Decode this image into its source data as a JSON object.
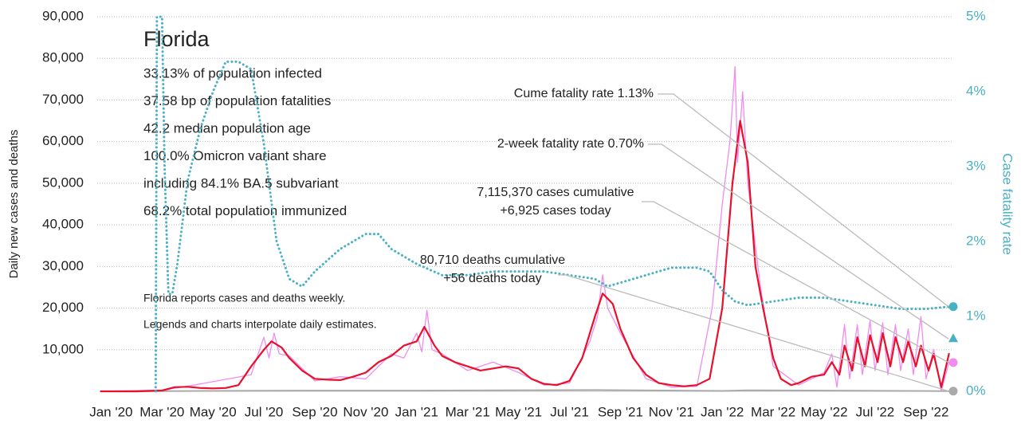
{
  "chart_data": {
    "type": "line",
    "title": "Florida",
    "stats": [
      "33.13% of population infected",
      "37.58 bp of population fatalities",
      "42.2 median population age",
      "100.0% Omicron variant share",
      "including 84.1% BA.5 subvariant",
      "68.2% total population immunized"
    ],
    "notes": [
      "Florida reports cases and deaths weekly.",
      "Legends and charts interpolate daily estimates."
    ],
    "ylabel": "Daily new cases and deaths",
    "y2label": "Case fatality rate",
    "xlim": [
      -0.45,
      33.1
    ],
    "xticks": [
      {
        "value": 0,
        "label": "Jan '20"
      },
      {
        "value": 2,
        "label": "Mar '20"
      },
      {
        "value": 4,
        "label": "May '20"
      },
      {
        "value": 6,
        "label": "Jul '20"
      },
      {
        "value": 8,
        "label": "Sep '20"
      },
      {
        "value": 10,
        "label": "Nov '20"
      },
      {
        "value": 12,
        "label": "Jan '21"
      },
      {
        "value": 14,
        "label": "Mar '21"
      },
      {
        "value": 16,
        "label": "May '21"
      },
      {
        "value": 18,
        "label": "Jul '21"
      },
      {
        "value": 20,
        "label": "Sep '21"
      },
      {
        "value": 22,
        "label": "Nov '21"
      },
      {
        "value": 24,
        "label": "Jan '22"
      },
      {
        "value": 26,
        "label": "Mar '22"
      },
      {
        "value": 28,
        "label": "May '22"
      },
      {
        "value": 30,
        "label": "Jul '22"
      },
      {
        "value": 32,
        "label": "Sep '22"
      }
    ],
    "ylim": [
      0,
      90000
    ],
    "yticks": [
      {
        "value": 10000,
        "label": "10,000"
      },
      {
        "value": 20000,
        "label": "20,000"
      },
      {
        "value": 30000,
        "label": "30,000"
      },
      {
        "value": 40000,
        "label": "40,000"
      },
      {
        "value": 50000,
        "label": "50,000"
      },
      {
        "value": 60000,
        "label": "60,000"
      },
      {
        "value": 70000,
        "label": "70,000"
      },
      {
        "value": 80000,
        "label": "80,000"
      },
      {
        "value": 90000,
        "label": "90,000"
      }
    ],
    "y2lim": [
      0,
      5
    ],
    "y2ticks": [
      {
        "value": 0,
        "label": "0%"
      },
      {
        "value": 1,
        "label": "1%"
      },
      {
        "value": 2,
        "label": "2%"
      },
      {
        "value": 3,
        "label": "3%"
      },
      {
        "value": 4,
        "label": "4%"
      },
      {
        "value": 5,
        "label": "5%"
      }
    ],
    "grid": true,
    "series": [
      {
        "color": "#f08cf0",
        "width": 1.3,
        "x": [
          -0.4,
          2,
          3,
          5.5,
          6,
          6.2,
          6.4,
          6.6,
          7,
          8,
          9,
          10,
          11,
          11.5,
          12,
          12.2,
          12.4,
          12.6,
          13,
          14,
          15,
          16,
          17,
          18,
          18.8,
          19.1,
          19.3,
          19.5,
          20,
          21,
          22,
          23,
          23.6,
          24,
          24.3,
          24.5,
          24.6,
          24.8,
          25,
          25.2,
          25.5,
          26,
          27,
          28,
          28.3,
          28.5,
          28.8,
          29.0,
          29.3,
          29.5,
          29.8,
          30.0,
          30.3,
          30.5,
          30.8,
          31.0,
          31.3,
          31.5,
          31.8,
          32.0,
          32.3,
          32.6,
          32.9
        ],
        "values": [
          0,
          300,
          1200,
          4000,
          13000,
          8000,
          14000,
          9000,
          8500,
          2500,
          3500,
          3000,
          9000,
          8000,
          14000,
          9500,
          19500,
          10000,
          9000,
          5000,
          7000,
          4500,
          1500,
          2000,
          12000,
          18000,
          28000,
          20000,
          14000,
          3000,
          1000,
          1200,
          20000,
          45000,
          60000,
          78000,
          55000,
          72000,
          50000,
          40000,
          25000,
          6000,
          1500,
          4500,
          9000,
          1000,
          16000,
          3000,
          16000,
          4000,
          17000,
          5000,
          16500,
          4000,
          16000,
          5000,
          15000,
          4000,
          18000,
          3000,
          10000,
          0,
          7000
        ]
      },
      {
        "color": "#aaaaaa",
        "width": 2,
        "x": [
          -0.4,
          2,
          6,
          12,
          19,
          24,
          25,
          32.9
        ],
        "values": [
          0,
          50,
          150,
          180,
          300,
          100,
          250,
          56
        ]
      },
      {
        "color": "#e8102a",
        "width": 2.2,
        "x": [
          -0.4,
          0,
          1,
          2,
          2.5,
          3,
          3.5,
          4,
          4.5,
          5,
          5.5,
          6,
          6.3,
          6.7,
          7,
          7.5,
          8,
          8.5,
          9,
          9.5,
          10,
          10.5,
          11,
          11.5,
          12,
          12.3,
          12.7,
          13,
          13.5,
          14,
          14.5,
          15,
          15.5,
          16,
          16.5,
          17,
          17.5,
          18,
          18.5,
          19,
          19.3,
          19.7,
          20,
          20.5,
          21,
          21.5,
          22,
          22.5,
          23,
          23.5,
          24,
          24.4,
          24.7,
          25,
          25.3,
          25.6,
          26,
          26.3,
          26.7,
          27,
          27.5,
          28,
          28.3,
          28.6,
          28.8,
          29.1,
          29.3,
          29.6,
          29.8,
          30.1,
          30.3,
          30.6,
          30.8,
          31.1,
          31.3,
          31.6,
          31.8,
          32.1,
          32.3,
          32.6,
          32.9
        ],
        "values": [
          0,
          0,
          0,
          200,
          1000,
          1100,
          800,
          700,
          800,
          1500,
          6000,
          10000,
          12000,
          10500,
          8000,
          5000,
          3000,
          2800,
          2700,
          3500,
          4500,
          7000,
          8500,
          11000,
          12000,
          15500,
          11000,
          8500,
          7000,
          6000,
          5000,
          5500,
          6000,
          5500,
          3000,
          1800,
          1500,
          2500,
          8000,
          18000,
          23500,
          21000,
          15000,
          8000,
          4000,
          2000,
          1500,
          1200,
          1500,
          3000,
          20000,
          50000,
          65000,
          55000,
          30000,
          20000,
          8000,
          3000,
          1500,
          2000,
          3500,
          4000,
          7000,
          4000,
          11000,
          5000,
          13000,
          6000,
          13500,
          7000,
          14000,
          6000,
          13000,
          7000,
          12000,
          6000,
          11000,
          5000,
          9000,
          1000,
          9000
        ]
      },
      {
        "color": "#4ab0c4",
        "width": 3,
        "dotted": true,
        "axis": "y2",
        "x": [
          1.75,
          1.8,
          2.0,
          2.1,
          2.25,
          2.4,
          2.6,
          3,
          3.5,
          4,
          4.5,
          5,
          5.5,
          6,
          6.5,
          7,
          7.5,
          8,
          9,
          10,
          10.5,
          11,
          12,
          13,
          14,
          15,
          16,
          17,
          18,
          19,
          19.5,
          20,
          21,
          22,
          23,
          23.5,
          24,
          24.5,
          25,
          26,
          27,
          28,
          29,
          30,
          31,
          32,
          32.9
        ],
        "values": [
          0,
          5,
          5,
          3.0,
          1.3,
          1.3,
          1.7,
          2.8,
          3.5,
          4.0,
          4.4,
          4.4,
          4.3,
          3.3,
          2.0,
          1.5,
          1.4,
          1.6,
          1.9,
          2.1,
          2.1,
          1.9,
          1.7,
          1.55,
          1.55,
          1.6,
          1.6,
          1.6,
          1.55,
          1.5,
          1.4,
          1.45,
          1.55,
          1.65,
          1.65,
          1.6,
          1.35,
          1.2,
          1.15,
          1.2,
          1.25,
          1.25,
          1.2,
          1.15,
          1.1,
          1.1,
          1.13
        ]
      }
    ],
    "annotations": [
      {
        "lines": [
          "Cume fatality rate 1.13%"
        ],
        "value": 1.13,
        "axis": "y2",
        "marker": "circle",
        "color": "#4ab0c4"
      },
      {
        "lines": [
          "2-week fatality rate 0.70%"
        ],
        "value": 0.7,
        "axis": "y2",
        "marker": "triangle",
        "color": "#4ab0c4"
      },
      {
        "lines": [
          "7,115,370 cases cumulative",
          "+6,925 cases today"
        ],
        "value": 6925,
        "axis": "y",
        "marker": "circle",
        "color": "#f08cf0"
      },
      {
        "lines": [
          "80,710 deaths cumulative",
          "+56 deaths today"
        ],
        "value": 56,
        "axis": "y",
        "marker": "circle",
        "color": "#aaaaaa"
      }
    ]
  }
}
